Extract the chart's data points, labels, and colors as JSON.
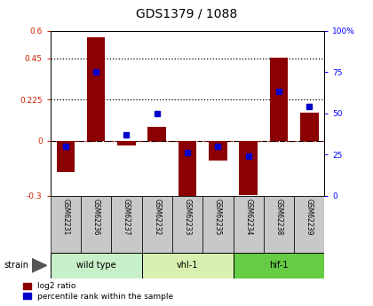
{
  "title": "GDS1379 / 1088",
  "samples": [
    "GSM62231",
    "GSM62236",
    "GSM62237",
    "GSM62232",
    "GSM62233",
    "GSM62235",
    "GSM62234",
    "GSM62238",
    "GSM62239"
  ],
  "log2_ratio": [
    -0.17,
    0.565,
    -0.025,
    0.075,
    -0.32,
    -0.11,
    -0.295,
    0.455,
    0.155
  ],
  "pct_rank": [
    30,
    75,
    37,
    50,
    26,
    30,
    24,
    63,
    54
  ],
  "groups": [
    {
      "label": "wild type",
      "indices": [
        0,
        1,
        2
      ],
      "color": "#c8f0c8"
    },
    {
      "label": "vhl-1",
      "indices": [
        3,
        4,
        5
      ],
      "color": "#d8f0b0"
    },
    {
      "label": "hif-1",
      "indices": [
        6,
        7,
        8
      ],
      "color": "#66cc44"
    }
  ],
  "bar_color": "#8b0000",
  "dot_color": "#0000cc",
  "ylim_left": [
    -0.3,
    0.6
  ],
  "ylim_right": [
    0,
    100
  ],
  "yticks_left": [
    -0.3,
    0.0,
    0.225,
    0.45,
    0.6
  ],
  "yticks_right": [
    0,
    25,
    50,
    75,
    100
  ],
  "ytick_labels_left": [
    "-0.3",
    "0",
    "0.225",
    "0.45",
    "0.6"
  ],
  "ytick_labels_right": [
    "0",
    "25",
    "50",
    "75",
    "100%"
  ],
  "hlines": [
    0.225,
    0.45
  ],
  "zero_line_y": 0.0,
  "background_color": "#ffffff",
  "sample_box_color": "#c8c8c8",
  "strain_label": "strain"
}
